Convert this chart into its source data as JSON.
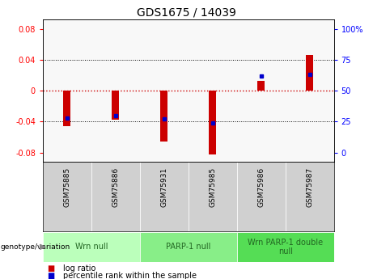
{
  "title": "GDS1675 / 14039",
  "samples": [
    "GSM75885",
    "GSM75886",
    "GSM75931",
    "GSM75985",
    "GSM75986",
    "GSM75987"
  ],
  "log_ratios": [
    -0.046,
    -0.038,
    -0.066,
    -0.083,
    0.013,
    0.046
  ],
  "percentile_ranks": [
    28,
    30,
    27,
    24,
    62,
    63
  ],
  "groups": [
    {
      "label": "Wrn null",
      "start": 0,
      "end": 2,
      "color": "#bbffbb"
    },
    {
      "label": "PARP-1 null",
      "start": 2,
      "end": 4,
      "color": "#88ee88"
    },
    {
      "label": "Wrn PARP-1 double\nnull",
      "start": 4,
      "end": 6,
      "color": "#55dd55"
    }
  ],
  "ylim": [
    -0.092,
    0.092
  ],
  "y_ticks_left": [
    -0.08,
    -0.04,
    0.0,
    0.04,
    0.08
  ],
  "y_tick_labels_left": [
    "-0.08",
    "-0.04",
    "0",
    "0.04",
    "0.08"
  ],
  "y_ticks_right": [
    0,
    25,
    50,
    75,
    100
  ],
  "y_tick_labels_right": [
    "0",
    "25",
    "50",
    "75",
    "100%"
  ],
  "bar_color": "#cc0000",
  "dot_color": "#0000cc",
  "zero_line_color": "#cc0000",
  "bg_color": "#ffffff",
  "plot_bg": "#f8f8f8",
  "sample_bg": "#d0d0d0",
  "title_fontsize": 10,
  "tick_fontsize": 7,
  "sample_fontsize": 6.5,
  "group_fontsize": 7,
  "legend_fontsize": 7,
  "bar_width": 0.15
}
